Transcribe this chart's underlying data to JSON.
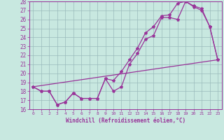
{
  "title": "",
  "xlabel": "Windchill (Refroidissement éolien,°C)",
  "xlim": [
    -0.5,
    23.5
  ],
  "ylim": [
    16,
    28
  ],
  "xticks": [
    0,
    1,
    2,
    3,
    4,
    5,
    6,
    7,
    8,
    9,
    10,
    11,
    12,
    13,
    14,
    15,
    16,
    17,
    18,
    19,
    20,
    21,
    22,
    23
  ],
  "yticks": [
    16,
    17,
    18,
    19,
    20,
    21,
    22,
    23,
    24,
    25,
    26,
    27,
    28
  ],
  "bg_color": "#c8e8e0",
  "line_color": "#993399",
  "grid_color": "#99bbbb",
  "line1_x": [
    0,
    1,
    2,
    3,
    4,
    5,
    6,
    7,
    8,
    9,
    10,
    11,
    12,
    13,
    14,
    15,
    16,
    17,
    18,
    19,
    20,
    21,
    22,
    23
  ],
  "line1_y": [
    18.5,
    18.0,
    18.0,
    16.5,
    16.8,
    17.8,
    17.2,
    17.2,
    17.2,
    19.4,
    18.0,
    18.5,
    21.0,
    22.2,
    23.8,
    24.2,
    26.2,
    26.2,
    26.0,
    28.0,
    27.4,
    27.0,
    25.2,
    21.5
  ],
  "line2_x": [
    0,
    1,
    2,
    3,
    4,
    5,
    6,
    7,
    8,
    9,
    10,
    11,
    12,
    13,
    14,
    15,
    16,
    17,
    18,
    19,
    20,
    21,
    22,
    23
  ],
  "line2_y": [
    18.5,
    18.0,
    18.0,
    16.5,
    16.8,
    17.8,
    17.2,
    17.2,
    17.2,
    19.4,
    19.2,
    20.2,
    21.5,
    22.8,
    24.5,
    25.2,
    26.4,
    26.5,
    27.8,
    28.0,
    27.5,
    27.2,
    25.2,
    21.5
  ],
  "line3_x": [
    0,
    23
  ],
  "line3_y": [
    18.5,
    21.5
  ]
}
